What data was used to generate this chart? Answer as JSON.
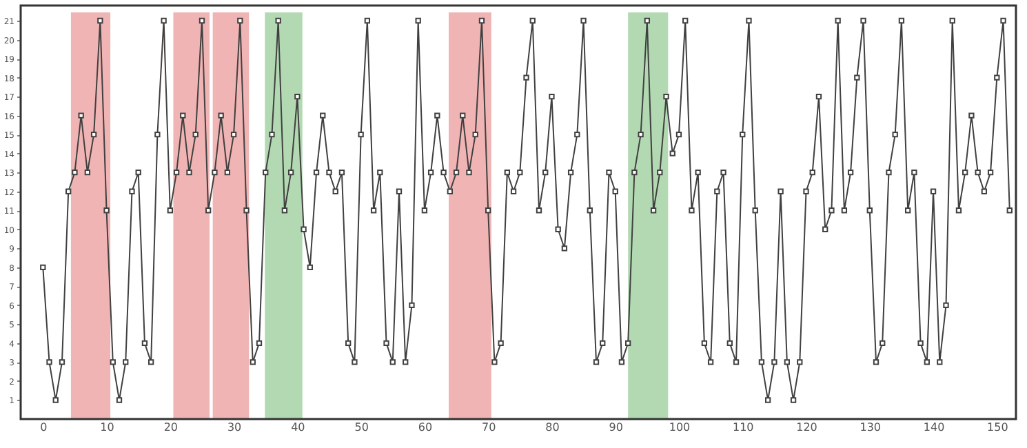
{
  "chart_data": {
    "type": "line",
    "x": [
      0,
      1,
      2,
      3,
      4,
      5,
      6,
      7,
      8,
      9,
      10,
      11,
      12,
      13,
      14,
      15,
      16,
      17,
      18,
      19,
      20,
      21,
      22,
      23,
      24,
      25,
      26,
      27,
      28,
      29,
      30,
      31,
      32,
      33,
      34,
      35,
      36,
      37,
      38,
      39,
      40,
      41,
      42,
      43,
      44,
      45,
      46,
      47,
      48,
      49,
      50,
      51,
      52,
      53,
      54,
      55,
      56,
      57,
      58,
      59,
      60,
      61,
      62,
      63,
      64,
      65,
      66,
      67,
      68,
      69,
      70,
      71,
      72,
      73,
      74,
      75,
      76,
      77,
      78,
      79,
      80,
      81,
      82,
      83,
      84,
      85,
      86,
      87,
      88,
      89,
      90,
      91,
      92,
      93,
      94,
      95,
      96,
      97,
      98,
      99,
      100,
      101,
      102,
      103,
      104,
      105,
      106,
      107,
      108,
      109,
      110,
      111,
      112,
      113,
      114,
      115,
      116,
      117,
      118,
      119,
      120,
      121,
      122,
      123,
      124,
      125,
      126,
      127,
      128,
      129,
      130,
      131,
      132,
      133,
      134,
      135,
      136,
      137,
      138,
      139,
      140,
      141,
      142,
      143,
      144,
      145,
      146,
      147,
      148,
      149,
      150,
      151,
      152
    ],
    "series": [
      {
        "color": "#404040",
        "values": [
          8,
          3,
          1,
          3,
          12,
          13,
          16,
          13,
          15,
          21,
          11,
          3,
          1,
          3,
          12,
          13,
          4,
          3,
          15,
          21,
          11,
          13,
          16,
          13,
          15,
          21,
          11,
          13,
          16,
          13,
          15,
          21,
          11,
          3,
          4,
          13,
          15,
          21,
          11,
          13,
          17,
          10,
          8,
          13,
          16,
          13,
          12,
          13,
          4,
          3,
          15,
          21,
          11,
          13,
          4,
          3,
          12,
          3,
          6,
          21,
          11,
          13,
          16,
          13,
          12,
          13,
          16,
          13,
          15,
          21,
          11,
          3,
          4,
          13,
          12,
          13,
          18,
          21,
          11,
          13,
          17,
          10,
          9,
          13,
          15,
          21,
          11,
          3,
          4,
          13,
          12,
          3,
          4,
          13,
          15,
          21,
          11,
          13,
          17,
          14,
          15,
          21,
          11,
          13,
          4,
          3,
          12,
          13,
          4,
          3,
          15,
          21,
          11,
          3,
          1,
          3,
          12,
          3,
          1,
          3,
          12,
          13,
          17,
          10,
          11,
          21,
          11,
          13,
          18,
          21,
          11,
          3,
          4,
          13,
          15,
          21,
          11,
          13,
          4,
          3,
          12,
          3,
          6,
          21,
          11,
          13,
          16,
          13,
          12,
          13,
          18,
          21,
          11
        ]
      }
    ],
    "xlim": [
      -3.5,
      153
    ],
    "xticks": [
      0,
      10,
      20,
      30,
      40,
      50,
      60,
      70,
      80,
      90,
      100,
      110,
      120,
      130,
      140,
      150
    ],
    "ylim": [
      0,
      21.8
    ],
    "yticks": [
      1,
      2,
      3,
      4,
      5,
      6,
      7,
      8,
      9,
      10,
      11,
      12,
      13,
      14,
      15,
      16,
      17,
      18,
      19,
      20,
      21
    ],
    "marker": "square",
    "line_style": "solid",
    "grid": false,
    "bands": [
      {
        "axis": "x",
        "from": 4.4,
        "to": 10.6,
        "color": "#f0b4b4"
      },
      {
        "axis": "x",
        "from": 20.5,
        "to": 26.2,
        "color": "#f0b4b4"
      },
      {
        "axis": "x",
        "from": 26.7,
        "to": 32.4,
        "color": "#f0b4b4"
      },
      {
        "axis": "x",
        "from": 34.9,
        "to": 40.8,
        "color": "#b3d9b3"
      },
      {
        "axis": "x",
        "from": 63.8,
        "to": 70.5,
        "color": "#f0b4b4"
      },
      {
        "axis": "x",
        "from": 92.0,
        "to": 98.3,
        "color": "#b3d9b3"
      }
    ]
  }
}
